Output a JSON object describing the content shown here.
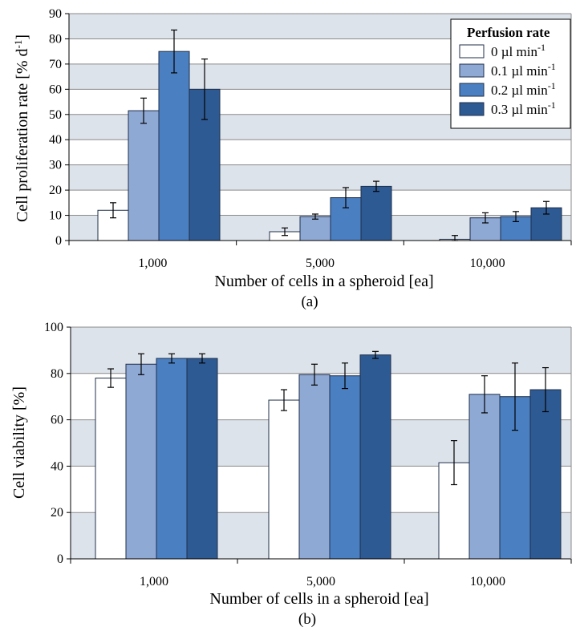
{
  "legend": {
    "title": "Perfusion rate",
    "entries": [
      "0 µl min",
      "0.1 µl min",
      "0.2 µl min",
      "0.3 µl min"
    ],
    "superscript": "-1"
  },
  "colors": {
    "series": [
      "#ffffff",
      "#8fa9d5",
      "#4a7fc1",
      "#2e5a93"
    ],
    "band": "#dde3ea",
    "grid": "#8a8a8a",
    "bar_outline": "#1f2f4a"
  },
  "chart_data": [
    {
      "type": "bar",
      "caption": "(a)",
      "categories": [
        "1,000",
        "5,000",
        "10,000"
      ],
      "xlabel": "Number of cells in a spheroid [ea]",
      "ylabel": "Cell proliferation rate [% d",
      "ylabel_superscript": "-1",
      "ylabel_suffix": "]",
      "ylim": [
        0,
        90
      ],
      "yticks": [
        0,
        10,
        20,
        30,
        40,
        50,
        60,
        70,
        80,
        90
      ],
      "grid": true,
      "legend_position": "top-right",
      "series": [
        {
          "name": "0 µl min-1",
          "values": [
            12,
            3.5,
            0.5
          ],
          "errors": [
            3,
            1.5,
            1.5
          ]
        },
        {
          "name": "0.1 µl min-1",
          "values": [
            51.5,
            9.5,
            9
          ],
          "errors": [
            5,
            1,
            2
          ]
        },
        {
          "name": "0.2 µl min-1",
          "values": [
            75,
            17,
            9.5
          ],
          "errors": [
            8.5,
            4,
            2
          ]
        },
        {
          "name": "0.3 µl min-1",
          "values": [
            60,
            21.5,
            13
          ],
          "errors": [
            12,
            2,
            2.5
          ]
        }
      ]
    },
    {
      "type": "bar",
      "caption": "(b)",
      "categories": [
        "1,000",
        "5,000",
        "10,000"
      ],
      "xlabel": "Number of cells in a spheroid [ea]",
      "ylabel": "Cell viability [%]",
      "ylim": [
        0,
        100
      ],
      "yticks": [
        0,
        20,
        40,
        60,
        80,
        100
      ],
      "grid": true,
      "series": [
        {
          "name": "0 µl min-1",
          "values": [
            78,
            68.5,
            41.5
          ],
          "errors": [
            4,
            4.5,
            9.5
          ]
        },
        {
          "name": "0.1 µl min-1",
          "values": [
            84,
            79.5,
            71
          ],
          "errors": [
            4.5,
            4.5,
            8
          ]
        },
        {
          "name": "0.2 µl min-1",
          "values": [
            86.5,
            79,
            70
          ],
          "errors": [
            2,
            5.5,
            14.5
          ]
        },
        {
          "name": "0.3 µl min-1",
          "values": [
            86.5,
            88,
            73
          ],
          "errors": [
            2,
            1.5,
            9.5
          ]
        }
      ]
    }
  ]
}
